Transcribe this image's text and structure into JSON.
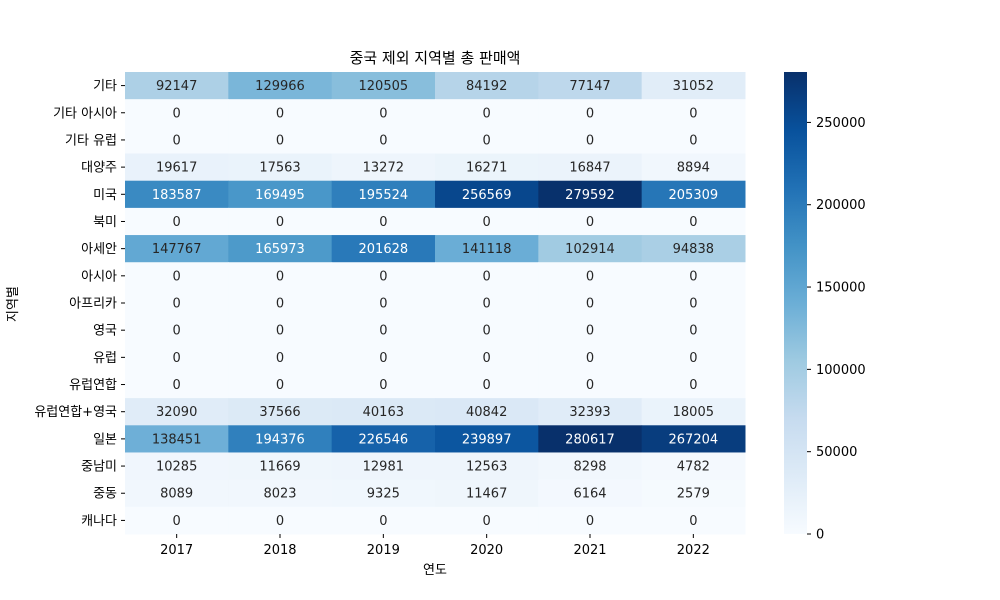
{
  "chart_data": {
    "type": "heatmap",
    "title": "중국 제외 지역별 총 판매액",
    "xlabel": "연도",
    "ylabel": "지역별",
    "x_categories": [
      "2017",
      "2018",
      "2019",
      "2020",
      "2021",
      "2022"
    ],
    "y_categories": [
      "기타",
      "기타 아시아",
      "기타 유럽",
      "대양주",
      "미국",
      "북미",
      "아세안",
      "아시아",
      "아프리카",
      "영국",
      "유럽",
      "유럽연합",
      "유럽연합+영국",
      "일본",
      "중남미",
      "중동",
      "캐나다"
    ],
    "values": [
      [
        92147,
        129966,
        120505,
        84192,
        77147,
        31052
      ],
      [
        0,
        0,
        0,
        0,
        0,
        0
      ],
      [
        0,
        0,
        0,
        0,
        0,
        0
      ],
      [
        19617,
        17563,
        13272,
        16271,
        16847,
        8894
      ],
      [
        183587,
        169495,
        195524,
        256569,
        279592,
        205309
      ],
      [
        0,
        0,
        0,
        0,
        0,
        0
      ],
      [
        147767,
        165973,
        201628,
        141118,
        102914,
        94838
      ],
      [
        0,
        0,
        0,
        0,
        0,
        0
      ],
      [
        0,
        0,
        0,
        0,
        0,
        0
      ],
      [
        0,
        0,
        0,
        0,
        0,
        0
      ],
      [
        0,
        0,
        0,
        0,
        0,
        0
      ],
      [
        0,
        0,
        0,
        0,
        0,
        0
      ],
      [
        32090,
        37566,
        40163,
        40842,
        32393,
        18005
      ],
      [
        138451,
        194376,
        226546,
        239897,
        280617,
        267204
      ],
      [
        10285,
        11669,
        12981,
        12563,
        8298,
        4782
      ],
      [
        8089,
        8023,
        9325,
        11467,
        6164,
        2579
      ],
      [
        0,
        0,
        0,
        0,
        0,
        0
      ]
    ],
    "colormap": "Blues",
    "colorbar": {
      "range": [
        0,
        280617
      ],
      "ticks": [
        0,
        50000,
        100000,
        150000,
        200000,
        250000
      ],
      "tick_labels": [
        "0",
        "50000",
        "100000",
        "150000",
        "200000",
        "250000"
      ]
    },
    "annotated": true,
    "grid": false
  }
}
